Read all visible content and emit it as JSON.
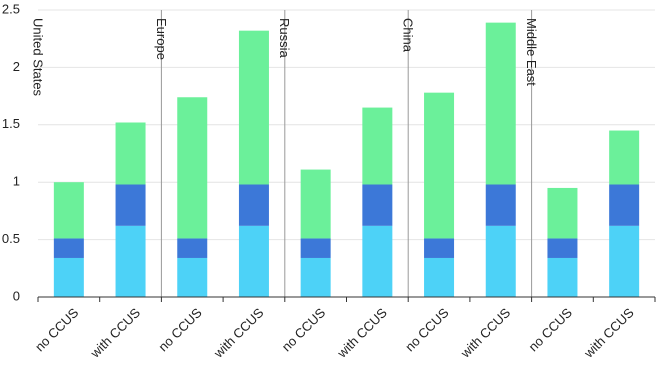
{
  "chart_data": {
    "type": "stacked-bar",
    "groups": [
      "United States",
      "Europe",
      "Russia",
      "China",
      "Middle East"
    ],
    "categories": [
      "no CCUS",
      "with CCUS",
      "no CCUS",
      "with CCUS",
      "no CCUS",
      "with CCUS",
      "no CCUS",
      "with CCUS",
      "no CCUS",
      "with CCUS"
    ],
    "series": [
      {
        "color": "#4dd2f7",
        "values": [
          0.34,
          0.62,
          0.34,
          0.62,
          0.34,
          0.62,
          0.34,
          0.62,
          0.34,
          0.62
        ]
      },
      {
        "color": "#3c78d8",
        "values": [
          0.17,
          0.36,
          0.17,
          0.36,
          0.17,
          0.36,
          0.17,
          0.36,
          0.17,
          0.36
        ]
      },
      {
        "color": "#6bf09a",
        "values": [
          0.49,
          0.54,
          1.23,
          1.34,
          0.6,
          0.67,
          1.27,
          1.41,
          0.44,
          0.47
        ]
      }
    ],
    "ylim": [
      0,
      2.5
    ],
    "yticks": [
      0,
      0.5,
      1,
      1.5,
      2,
      2.5
    ],
    "grid": true
  }
}
